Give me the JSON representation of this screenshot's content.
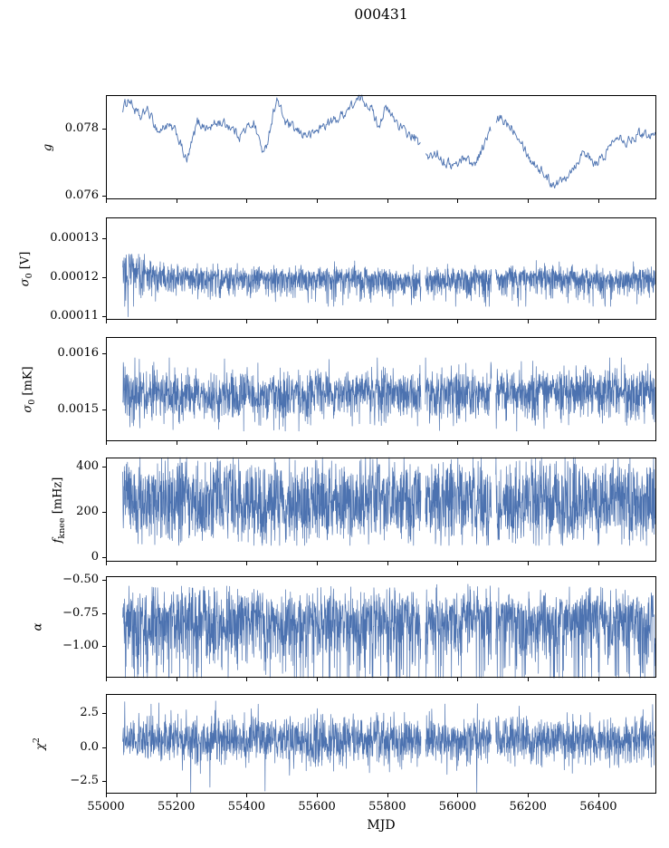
{
  "title": "000431",
  "colors": {
    "line": "#4c72b0",
    "axis": "#000000",
    "text": "#000000",
    "background": "#ffffff"
  },
  "chart_data": {
    "type": "line",
    "title": "000431",
    "xlabel": "MJD",
    "legend": "none",
    "grid": false,
    "layout": "6 vertically stacked subplots sharing x axis",
    "xlim": [
      55000,
      56565
    ],
    "x_data_range": [
      55048,
      56562
    ],
    "xticks": [
      {
        "v": 55000,
        "label": "55000"
      },
      {
        "v": 55200,
        "label": "55200"
      },
      {
        "v": 55400,
        "label": "55400"
      },
      {
        "v": 55600,
        "label": "55600"
      },
      {
        "v": 55800,
        "label": "55800"
      },
      {
        "v": 56000,
        "label": "56000"
      },
      {
        "v": 56200,
        "label": "56200"
      },
      {
        "v": 56400,
        "label": "56400"
      }
    ],
    "gaps": [
      [
        55896,
        55908
      ],
      [
        56096,
        56108
      ]
    ],
    "subplots": [
      {
        "name": "g",
        "ylabel": {
          "main": "g",
          "sub": "",
          "sup": "",
          "unit": ""
        },
        "ylim": [
          0.0759,
          0.079
        ],
        "yticks": [
          {
            "v": 0.078,
            "label": "0.078"
          },
          {
            "v": 0.076,
            "label": "0.076"
          }
        ],
        "series": {
          "kind": "smooth",
          "step": 2.0,
          "noise": 0.00013,
          "smooth": 0.45,
          "points": [
            [
              55048,
              0.0786
            ],
            [
              55065,
              0.0789
            ],
            [
              55085,
              0.0785
            ],
            [
              55100,
              0.0783
            ],
            [
              55115,
              0.0786
            ],
            [
              55150,
              0.0779
            ],
            [
              55170,
              0.0781
            ],
            [
              55200,
              0.0779
            ],
            [
              55230,
              0.077
            ],
            [
              55260,
              0.0782
            ],
            [
              55290,
              0.078
            ],
            [
              55320,
              0.0782
            ],
            [
              55350,
              0.0781
            ],
            [
              55380,
              0.0778
            ],
            [
              55420,
              0.0782
            ],
            [
              55450,
              0.0772
            ],
            [
              55485,
              0.0789
            ],
            [
              55510,
              0.0782
            ],
            [
              55545,
              0.0779
            ],
            [
              55580,
              0.0778
            ],
            [
              55620,
              0.0781
            ],
            [
              55660,
              0.0783
            ],
            [
              55700,
              0.0787
            ],
            [
              55725,
              0.0789
            ],
            [
              55750,
              0.0787
            ],
            [
              55775,
              0.0781
            ],
            [
              55795,
              0.0786
            ],
            [
              55820,
              0.0783
            ],
            [
              55850,
              0.0779
            ],
            [
              55880,
              0.0777
            ],
            [
              55915,
              0.0771
            ],
            [
              55940,
              0.0773
            ],
            [
              55965,
              0.077
            ],
            [
              55995,
              0.0769
            ],
            [
              56020,
              0.0772
            ],
            [
              56045,
              0.0769
            ],
            [
              56070,
              0.0774
            ],
            [
              56095,
              0.078
            ],
            [
              56120,
              0.0783
            ],
            [
              56150,
              0.0781
            ],
            [
              56175,
              0.0778
            ],
            [
              56205,
              0.0771
            ],
            [
              56235,
              0.0768
            ],
            [
              56265,
              0.0764
            ],
            [
              56290,
              0.0764
            ],
            [
              56315,
              0.0767
            ],
            [
              56340,
              0.077
            ],
            [
              56360,
              0.0774
            ],
            [
              56385,
              0.0769
            ],
            [
              56410,
              0.0771
            ],
            [
              56435,
              0.0775
            ],
            [
              56455,
              0.0779
            ],
            [
              56480,
              0.0776
            ],
            [
              56505,
              0.0778
            ],
            [
              56530,
              0.0779
            ],
            [
              56562,
              0.0778
            ]
          ]
        }
      },
      {
        "name": "sigma0_V",
        "ylabel": {
          "main": "σ",
          "sub": "0",
          "sup": "",
          "unit": " [V]"
        },
        "ylim": [
          0.000109,
          0.0001355
        ],
        "yticks": [
          {
            "v": 0.00013,
            "label": "0.00013"
          },
          {
            "v": 0.00012,
            "label": "0.00012"
          },
          {
            "v": 0.00011,
            "label": "0.00011"
          }
        ],
        "series": {
          "kind": "noise",
          "step": 0.7,
          "up": 1.4e-06,
          "down": 2.6e-06,
          "tail_p": 0.05,
          "tail_scale": 1.6e-06,
          "tail_side": "down",
          "clamp": [
            0.0001125,
            0.000126
          ],
          "start_boost": {
            "until": 55115,
            "mult": 1.7
          },
          "centers": [
            [
              55048,
              0.0001222
            ],
            [
              55080,
              0.000122
            ],
            [
              55130,
              0.0001207
            ],
            [
              55220,
              0.0001203
            ],
            [
              55320,
              0.0001198
            ],
            [
              55420,
              0.0001196
            ],
            [
              55520,
              0.0001199
            ],
            [
              55620,
              0.0001202
            ],
            [
              55720,
              0.00012
            ],
            [
              55820,
              0.0001196
            ],
            [
              55920,
              0.0001193
            ],
            [
              56020,
              0.0001196
            ],
            [
              56120,
              0.0001199
            ],
            [
              56220,
              0.0001202
            ],
            [
              56320,
              0.0001198
            ],
            [
              56420,
              0.0001196
            ],
            [
              56500,
              0.0001198
            ],
            [
              56562,
              0.0001199
            ]
          ],
          "spikes": [
            {
              "t": 55063,
              "v": 0.0001098
            }
          ]
        }
      },
      {
        "name": "sigma0_mK",
        "ylabel": {
          "main": "σ",
          "sub": "0",
          "sup": "",
          "unit": " [mK]"
        },
        "ylim": [
          0.001444,
          0.001629
        ],
        "yticks": [
          {
            "v": 0.0016,
            "label": "0.0016"
          },
          {
            "v": 0.0015,
            "label": "0.0015"
          }
        ],
        "series": {
          "kind": "noise",
          "step": 0.7,
          "up": 2e-05,
          "down": 2.6e-05,
          "tail_p": 0.05,
          "tail_scale": 1.6e-05,
          "tail_side": "down",
          "clamp": [
            0.001462,
            0.001592
          ],
          "start_boost": {
            "until": 55100,
            "mult": 1.3
          },
          "centers": [
            [
              55048,
              0.001535
            ],
            [
              55150,
              0.001532
            ],
            [
              55250,
              0.001528
            ],
            [
              55350,
              0.001527
            ],
            [
              55450,
              0.001532
            ],
            [
              55550,
              0.001528
            ],
            [
              55650,
              0.00153
            ],
            [
              55750,
              0.001533
            ],
            [
              55850,
              0.001532
            ],
            [
              55950,
              0.001531
            ],
            [
              56050,
              0.001532
            ],
            [
              56150,
              0.001533
            ],
            [
              56250,
              0.001532
            ],
            [
              56350,
              0.001534
            ],
            [
              56450,
              0.001533
            ],
            [
              56562,
              0.001533
            ]
          ]
        }
      },
      {
        "name": "fknee",
        "ylabel": {
          "main": "f",
          "sub": "knee",
          "sup": "",
          "unit": " [mHz]"
        },
        "ylim": [
          -20,
          440
        ],
        "yticks": [
          {
            "v": 400,
            "label": "400"
          },
          {
            "v": 200,
            "label": "200"
          },
          {
            "v": 0,
            "label": "0"
          }
        ],
        "series": {
          "kind": "noise",
          "step": 0.7,
          "uniform": 290,
          "up": 40,
          "down": 40,
          "tail_p": 0.05,
          "tail_scale": 30,
          "tail_side": "both",
          "clamp": [
            52,
            456
          ],
          "centers": [
            [
              55048,
              248
            ],
            [
              56562,
              248
            ]
          ]
        }
      },
      {
        "name": "alpha",
        "ylabel": {
          "main": "α",
          "sub": "",
          "sup": "",
          "unit": ""
        },
        "ylim": [
          -1.24,
          -0.47
        ],
        "yticks": [
          {
            "v": -0.5,
            "label": "−0.50"
          },
          {
            "v": -0.75,
            "label": "−0.75"
          },
          {
            "v": -1.0,
            "label": "−1.00"
          }
        ],
        "series": {
          "kind": "noise",
          "step": 0.7,
          "up": 0.1,
          "down": 0.17,
          "tail_p": 0.18,
          "tail_scale": 0.22,
          "tail_side": "down",
          "softtop": -0.56,
          "clamp": [
            -1.26,
            -0.52
          ],
          "centers": [
            [
              55048,
              -0.78
            ],
            [
              56562,
              -0.78
            ]
          ]
        }
      },
      {
        "name": "chi2",
        "ylabel": {
          "main": "χ",
          "sub": "",
          "sup": "2",
          "unit": ""
        },
        "ylim": [
          -3.4,
          3.9
        ],
        "yticks": [
          {
            "v": 2.5,
            "label": "2.5"
          },
          {
            "v": 0.0,
            "label": "0.0"
          },
          {
            "v": -2.5,
            "label": "−2.5"
          }
        ],
        "series": {
          "kind": "noise",
          "step": 0.7,
          "up": 0.85,
          "down": 0.85,
          "tail_p": 0.07,
          "tail_scale": 0.8,
          "tail_side": "both",
          "clamp": [
            -3.3,
            3.45
          ],
          "centers": [
            [
              55048,
              0.55
            ],
            [
              56562,
              0.55
            ]
          ]
        }
      }
    ]
  }
}
